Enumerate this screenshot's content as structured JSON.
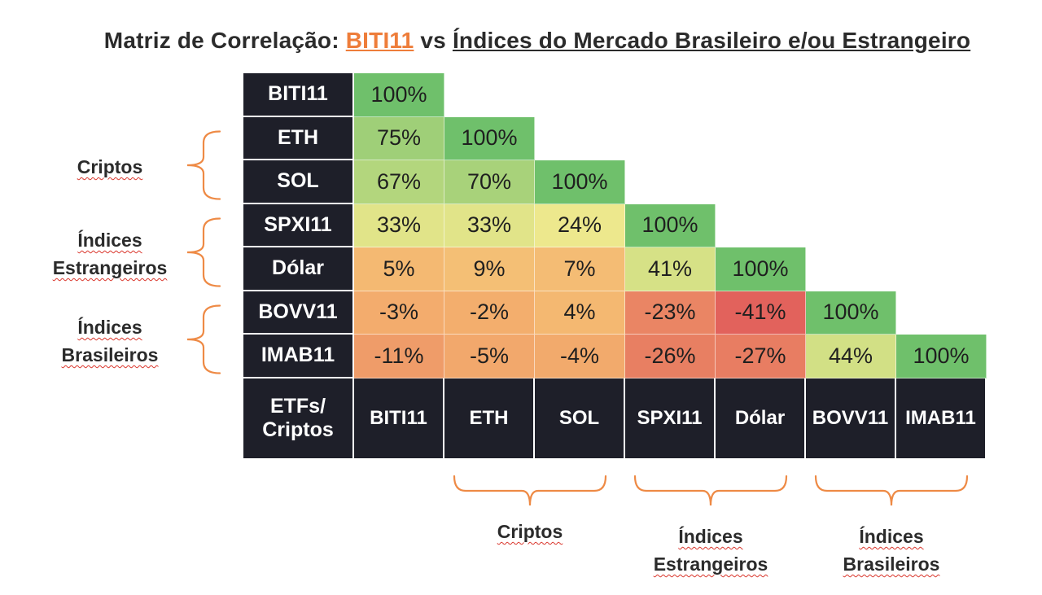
{
  "title": {
    "prefix": "Matriz de Correlação: ",
    "highlight": "BITI11",
    "middle": " vs ",
    "suffix": "Índices do Mercado Brasileiro e/ou Estrangeiro"
  },
  "chart_data": {
    "type": "heatmap",
    "corner_label": [
      "ETFs/",
      "Criptos"
    ],
    "row_labels": [
      "BITI11",
      "ETH",
      "SOL",
      "SPXI11",
      "Dólar",
      "BOVV11",
      "IMAB11"
    ],
    "col_labels": [
      "BITI11",
      "ETH",
      "SOL",
      "SPXI11",
      "Dólar",
      "BOVV11",
      "IMAB11"
    ],
    "values": [
      [
        100
      ],
      [
        75,
        100
      ],
      [
        67,
        70,
        100
      ],
      [
        33,
        33,
        24,
        100
      ],
      [
        5,
        9,
        7,
        41,
        100
      ],
      [
        -3,
        -2,
        4,
        -23,
        -41,
        100
      ],
      [
        -11,
        -5,
        -4,
        -26,
        -27,
        44,
        100
      ]
    ],
    "value_suffix": "%",
    "color_scale": {
      "low": "#e05a5a",
      "mid": "#f2ea8e",
      "high": "#6cbf6a"
    },
    "row_groups": [
      {
        "label": [
          "Criptos"
        ],
        "rows": [
          1,
          2
        ]
      },
      {
        "label": [
          "Índices",
          "Estrangeiros"
        ],
        "rows": [
          3,
          4
        ]
      },
      {
        "label": [
          "Índices",
          "Brasileiros"
        ],
        "rows": [
          5,
          6
        ]
      }
    ],
    "col_groups": [
      {
        "label": [
          "Criptos"
        ],
        "cols": [
          1,
          2
        ]
      },
      {
        "label": [
          "Índices",
          "Estrangeiros"
        ],
        "cols": [
          3,
          4
        ]
      },
      {
        "label": [
          "Índices",
          "Brasileiros"
        ],
        "cols": [
          5,
          6
        ]
      }
    ],
    "brace_color": "#ee8a45"
  }
}
